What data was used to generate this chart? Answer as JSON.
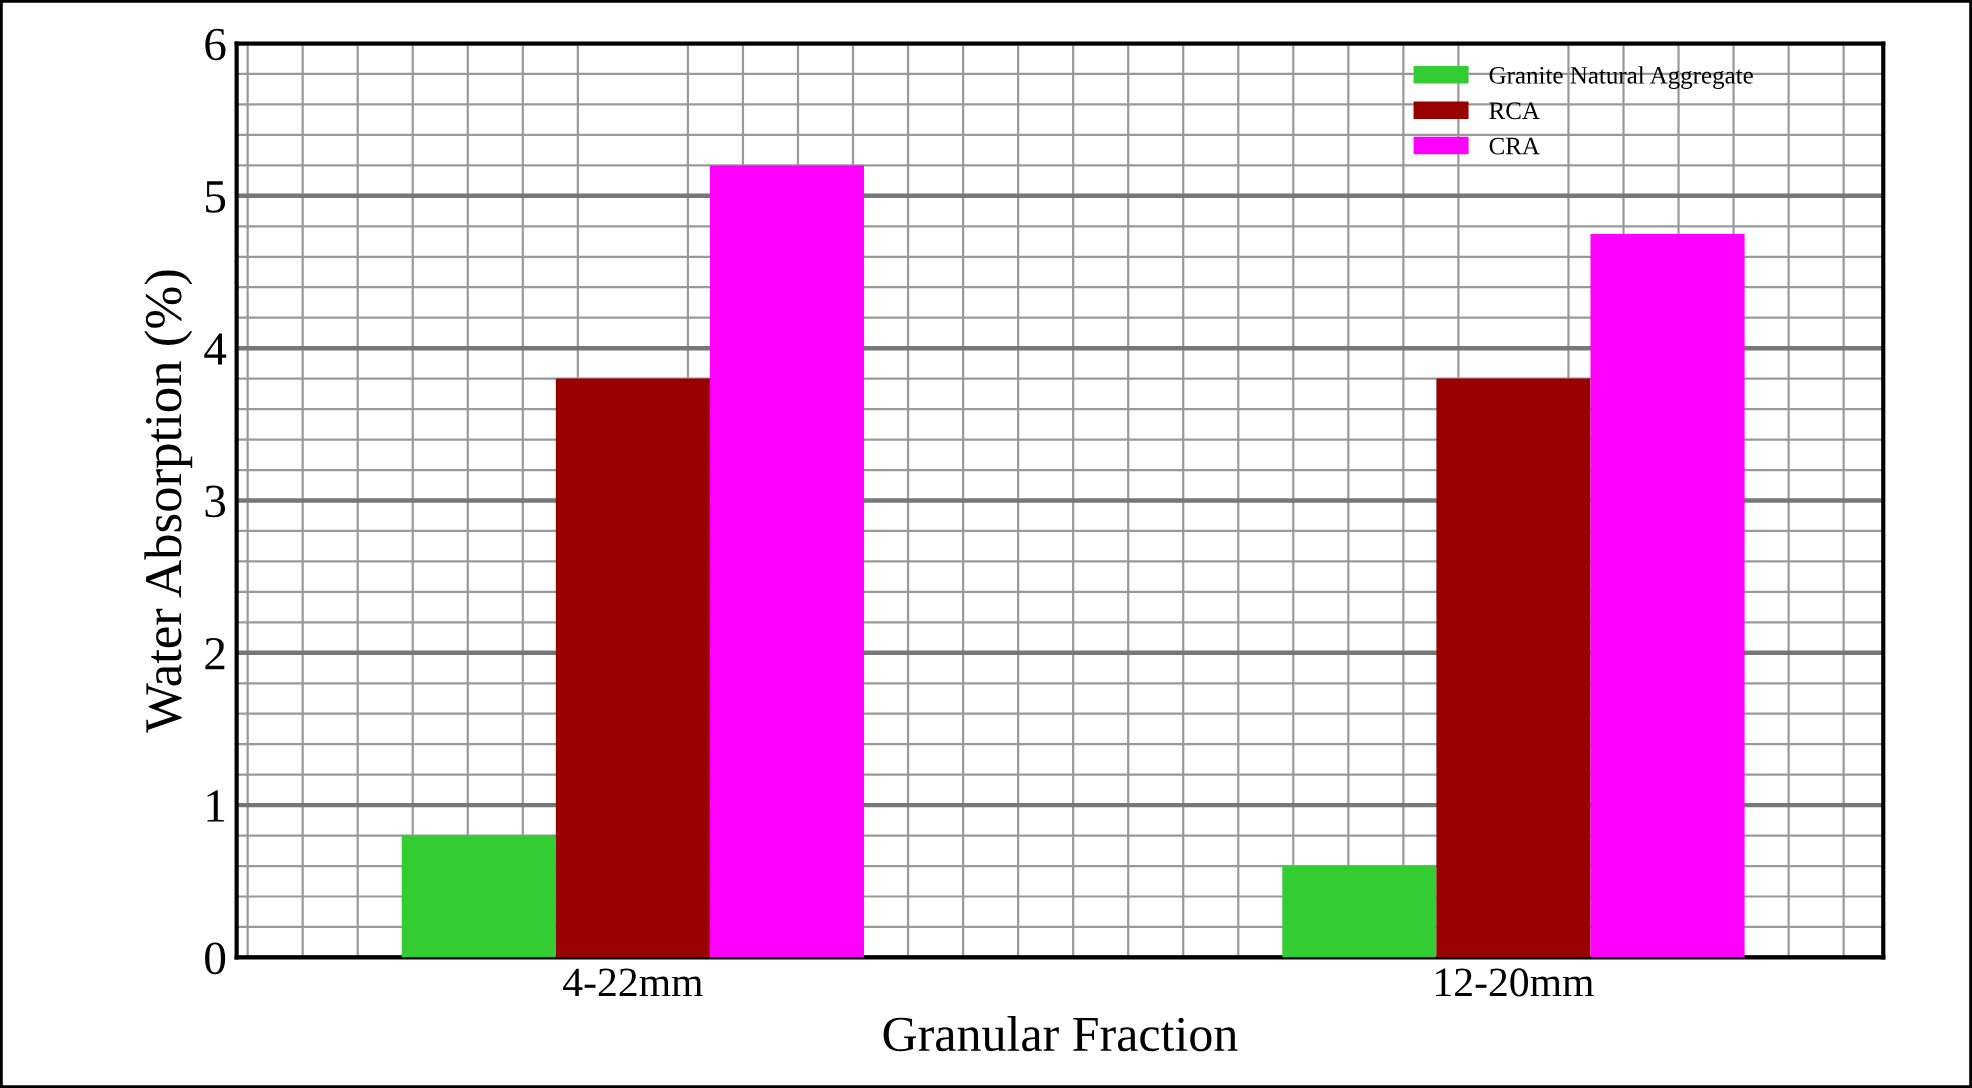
{
  "chart_data": {
    "type": "bar",
    "xlabel": "Granular Fraction",
    "ylabel": "Water Absorption (%)",
    "categories": [
      "4-22mm",
      "12-20mm"
    ],
    "series": [
      {
        "name": "Granite Natural Aggregate",
        "color": "#33cc33",
        "values": [
          0.8,
          0.6
        ]
      },
      {
        "name": "RCA",
        "color": "#990000",
        "values": [
          3.8,
          3.8
        ]
      },
      {
        "name": "CRA",
        "color": "#ff00ff",
        "values": [
          5.2,
          4.75
        ]
      }
    ],
    "ylim": [
      0,
      6
    ],
    "yticks": [
      0,
      1,
      2,
      3,
      4,
      5,
      6
    ],
    "grid": true,
    "legend": "top right"
  }
}
